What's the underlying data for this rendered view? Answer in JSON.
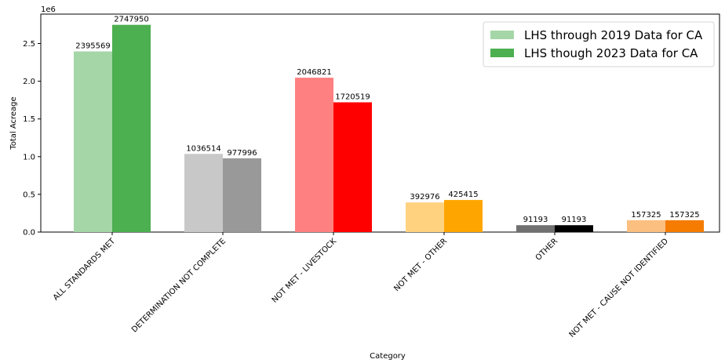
{
  "chart_data": {
    "type": "bar",
    "title": "",
    "xlabel": "Category",
    "ylabel": "Total Acreage",
    "y_offset_text": "1e6",
    "ylim": [
      0,
      2.89
    ],
    "yticks": [
      "0.0",
      "0.5",
      "1.0",
      "1.5",
      "2.0",
      "2.5"
    ],
    "categories": [
      "ALL STANDARDS MET",
      "DETERMINATION NOT COMPLETE",
      "NOT MET - LIVESTOCK",
      "NOT MET - OTHER",
      "OTHER",
      "NOT MET - CAUSE NOT IDENTIFIED"
    ],
    "series": [
      {
        "name": "LHS through 2019 Data for CA",
        "values": [
          2395569,
          1036514,
          2046821,
          392976,
          91193,
          157325
        ],
        "colors": [
          "#a5d6a7",
          "#c8c8c8",
          "#ff8080",
          "#ffd280",
          "#707070",
          "#fbbf80"
        ],
        "legend_color": "#a5d6a7"
      },
      {
        "name": "LHS though 2023 Data for CA",
        "values": [
          2747950,
          977996,
          1720519,
          425415,
          91193,
          157325
        ],
        "colors": [
          "#4caf50",
          "#999999",
          "#ff0000",
          "#ffa500",
          "#000000",
          "#f57c00"
        ],
        "legend_color": "#4caf50"
      }
    ],
    "grid": false,
    "legend_position": "top-right"
  }
}
